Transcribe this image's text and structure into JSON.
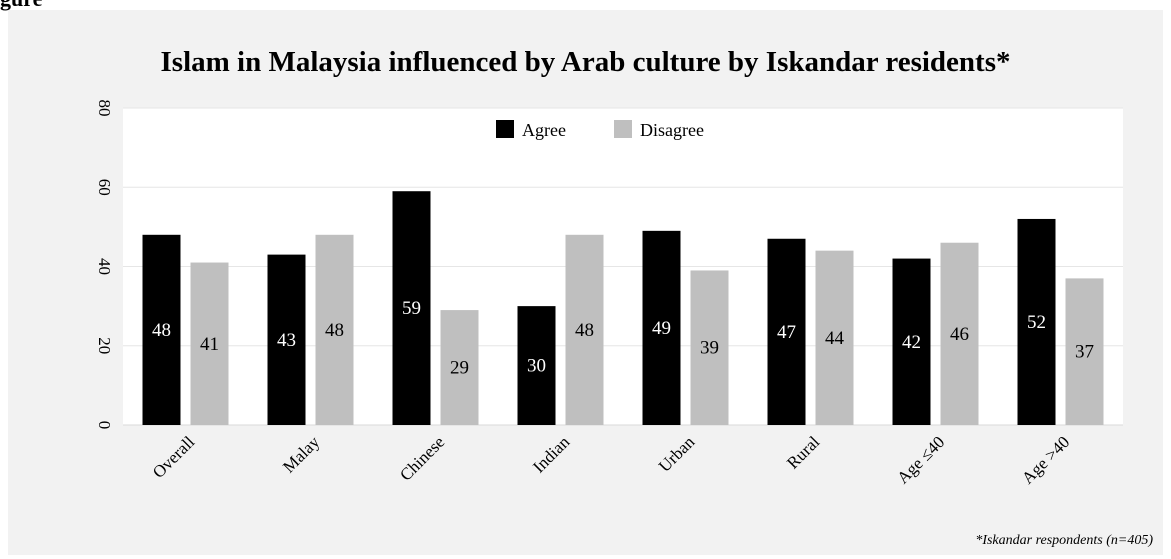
{
  "figure": {
    "heading_fragment": "gure"
  },
  "chart_data": {
    "type": "bar",
    "title": "Islam in Malaysia influenced by Arab culture by Iskandar residents*",
    "categories": [
      "Overall",
      "Malay",
      "Chinese",
      "Indian",
      "Urban",
      "Rural",
      "Age ≤40",
      "Age >40"
    ],
    "series": [
      {
        "name": "Agree",
        "color": "#000000",
        "label_color": "#ffffff",
        "values": [
          48,
          43,
          59,
          30,
          49,
          47,
          42,
          52
        ]
      },
      {
        "name": "Disagree",
        "color": "#bfbfbf",
        "label_color": "#000000",
        "values": [
          41,
          48,
          29,
          48,
          39,
          44,
          46,
          37
        ]
      }
    ],
    "ylim": [
      0,
      80
    ],
    "yticks": [
      0,
      20,
      40,
      60,
      80
    ],
    "grid": true,
    "legend": "top-center",
    "footnote": "*Iskandar respondents (n=405)"
  }
}
